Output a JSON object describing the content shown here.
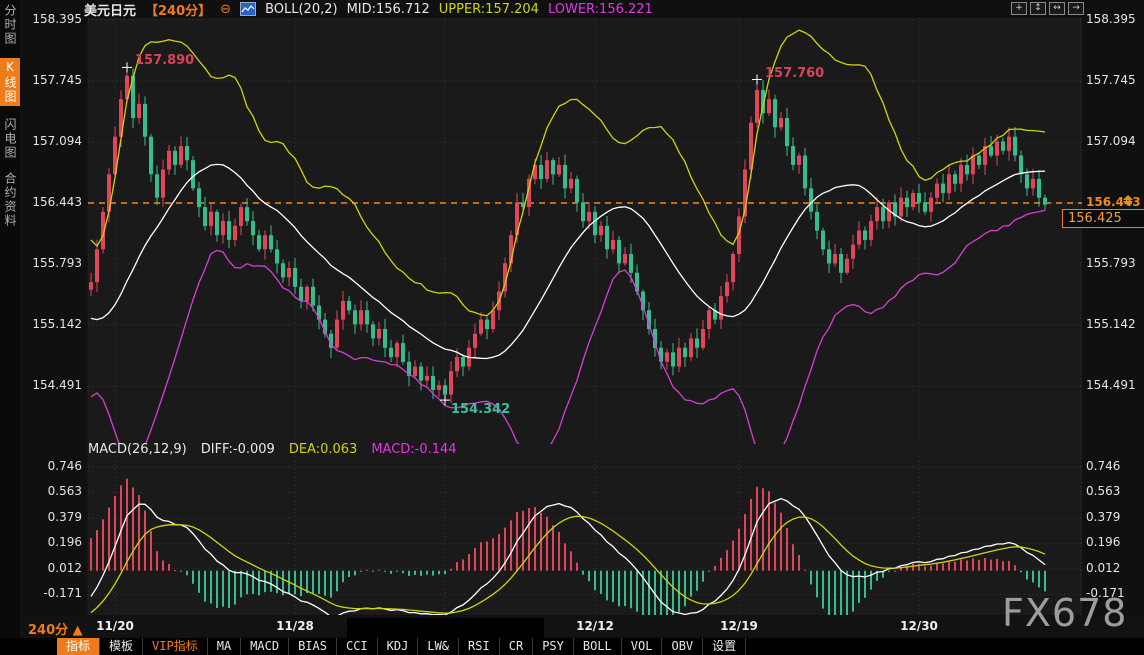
{
  "sidebar": {
    "items": [
      {
        "label": "分时图",
        "active": false
      },
      {
        "label": "K线图",
        "active": true
      },
      {
        "label": "闪电图",
        "active": false
      },
      {
        "label": "合约资料",
        "active": false
      }
    ]
  },
  "header": {
    "symbol": "美元日元",
    "period": "【240分】",
    "collapse_icon": "⊖",
    "indicator": "BOLL(20,2)",
    "mid": "MID:156.712",
    "upper": "UPPER:157.204",
    "lower": "LOWER:156.221"
  },
  "top_icons": [
    {
      "name": "crosshair-icon",
      "glyph": "+"
    },
    {
      "name": "scale-vertical-icon",
      "glyph": "↕"
    },
    {
      "name": "scale-horizontal-icon",
      "glyph": "↔"
    },
    {
      "name": "pan-right-icon",
      "glyph": "→"
    }
  ],
  "price_axis": {
    "ticks": [
      "158.395",
      "157.745",
      "157.094",
      "156.443",
      "155.793",
      "155.142",
      "154.491"
    ],
    "highlight_value": "156.443",
    "current_price": "156.425"
  },
  "macd_axis": {
    "ticks": [
      "0.746",
      "0.563",
      "0.379",
      "0.196",
      "0.012",
      "-0.171"
    ]
  },
  "macd_header": {
    "title": "MACD(26,12,9)",
    "diff": "DIFF:-0.009",
    "dea": "DEA:0.063",
    "macd": "MACD:-0.144"
  },
  "xaxis": {
    "period_label": "240分",
    "period_arrow": "▲"
  },
  "bottom_toolbar": {
    "items": [
      {
        "label": "指标",
        "style": "active"
      },
      {
        "label": "模板",
        "style": "normal"
      },
      {
        "label": "VIP指标",
        "style": "vip"
      },
      {
        "label": "MA",
        "style": "normal"
      },
      {
        "label": "MACD",
        "style": "normal"
      },
      {
        "label": "BIAS",
        "style": "normal"
      },
      {
        "label": "CCI",
        "style": "normal"
      },
      {
        "label": "KDJ",
        "style": "normal"
      },
      {
        "label": "LW&",
        "style": "normal"
      },
      {
        "label": "RSI",
        "style": "normal"
      },
      {
        "label": "CR",
        "style": "normal"
      },
      {
        "label": "PSY",
        "style": "normal"
      },
      {
        "label": "BOLL",
        "style": "normal"
      },
      {
        "label": "VOL",
        "style": "normal"
      },
      {
        "label": "OBV",
        "style": "normal"
      },
      {
        "label": "设置",
        "style": "normal"
      }
    ]
  },
  "watermark": "FX678",
  "chart_data": {
    "type": "candlestick",
    "title": "美元日元 240分 K线图 + BOLL(20,2) + MACD(26,12,9)",
    "price_ticks": [
      158.395,
      157.745,
      157.094,
      156.443,
      155.793,
      155.142,
      154.491
    ],
    "macd_ticks": [
      0.746,
      0.563,
      0.379,
      0.196,
      0.012,
      -0.171
    ],
    "dashed_level": 156.443,
    "current_price": 156.425,
    "boll": {
      "period": 20,
      "mult": 2,
      "mid": 156.712,
      "upper": 157.204,
      "lower": 156.221
    },
    "macd_params": {
      "fast": 26,
      "slow": 12,
      "signal": 9,
      "diff": -0.009,
      "dea": 0.063,
      "macd": -0.144
    },
    "date_ticks": [
      {
        "label": "11/20",
        "index": 4
      },
      {
        "label": "",
        "index": 59,
        "redacted": true
      },
      {
        "label": "11/28",
        "index": 34
      },
      {
        "label": "12/12",
        "index": 84
      },
      {
        "label": "12/19",
        "index": 108
      },
      {
        "label": "12/30",
        "index": 138
      }
    ],
    "annotations": [
      {
        "index": 6,
        "price": 157.89,
        "label": "157.890",
        "kind": "high"
      },
      {
        "index": 59,
        "price": 154.342,
        "label": "154.342",
        "kind": "low"
      },
      {
        "index": 111,
        "price": 157.76,
        "label": "157.760",
        "kind": "high"
      }
    ],
    "pad_history": [
      156.5,
      156.2,
      155.95,
      155.7,
      155.45,
      155.25,
      155.05,
      154.9,
      154.8,
      154.72,
      154.68,
      154.72,
      154.8,
      154.9,
      155.0,
      155.1,
      155.2,
      155.3,
      155.42,
      155.52
    ],
    "closes": [
      155.6,
      155.95,
      156.35,
      156.75,
      157.15,
      157.55,
      157.8,
      157.35,
      157.5,
      157.15,
      156.75,
      156.5,
      156.8,
      157.0,
      156.85,
      157.05,
      156.9,
      156.6,
      156.4,
      156.2,
      156.35,
      156.1,
      156.25,
      156.05,
      156.2,
      156.4,
      156.25,
      156.1,
      155.95,
      156.1,
      155.95,
      155.8,
      155.65,
      155.75,
      155.55,
      155.4,
      155.55,
      155.35,
      155.2,
      155.05,
      154.9,
      155.2,
      155.4,
      155.3,
      155.15,
      155.3,
      155.15,
      155.0,
      155.1,
      154.9,
      154.8,
      154.95,
      154.75,
      154.6,
      154.7,
      154.55,
      154.6,
      154.45,
      154.5,
      154.4,
      154.65,
      154.8,
      154.7,
      154.9,
      155.05,
      155.2,
      155.1,
      155.3,
      155.5,
      155.8,
      156.1,
      156.45,
      156.4,
      156.7,
      156.85,
      156.7,
      156.9,
      156.75,
      156.85,
      156.6,
      156.7,
      156.45,
      156.25,
      156.35,
      156.1,
      156.2,
      155.95,
      156.05,
      155.8,
      155.9,
      155.7,
      155.5,
      155.3,
      155.1,
      154.9,
      154.75,
      154.85,
      154.7,
      154.9,
      154.8,
      155.0,
      154.9,
      155.1,
      155.3,
      155.2,
      155.45,
      155.6,
      155.9,
      156.3,
      156.8,
      157.3,
      157.65,
      157.4,
      157.55,
      157.25,
      157.35,
      157.05,
      156.85,
      156.95,
      156.6,
      156.35,
      156.15,
      155.95,
      155.8,
      155.9,
      155.7,
      155.85,
      156.0,
      156.15,
      156.05,
      156.25,
      156.4,
      156.25,
      156.45,
      156.3,
      156.5,
      156.4,
      156.55,
      156.45,
      156.35,
      156.5,
      156.65,
      156.55,
      156.75,
      156.65,
      156.85,
      156.75,
      156.95,
      156.85,
      157.05,
      156.95,
      157.1,
      157.0,
      157.15,
      156.95,
      156.75,
      156.6,
      156.7,
      156.5,
      156.425
    ],
    "colors": {
      "up": "#e0455a",
      "down": "#36bd8e",
      "boll_mid": "#ffffff",
      "boll_upper": "#cdd40e",
      "boll_lower": "#d63ed6",
      "dashed": "#ef8a1e",
      "grid": "#343434",
      "annotation_high": "#d9435a",
      "annotation_low": "#3dbf9c",
      "hist_pos": "#e0455a",
      "hist_neg": "#36bd8e",
      "diff_line": "#ffffff",
      "dea_line": "#cdd40e"
    }
  }
}
